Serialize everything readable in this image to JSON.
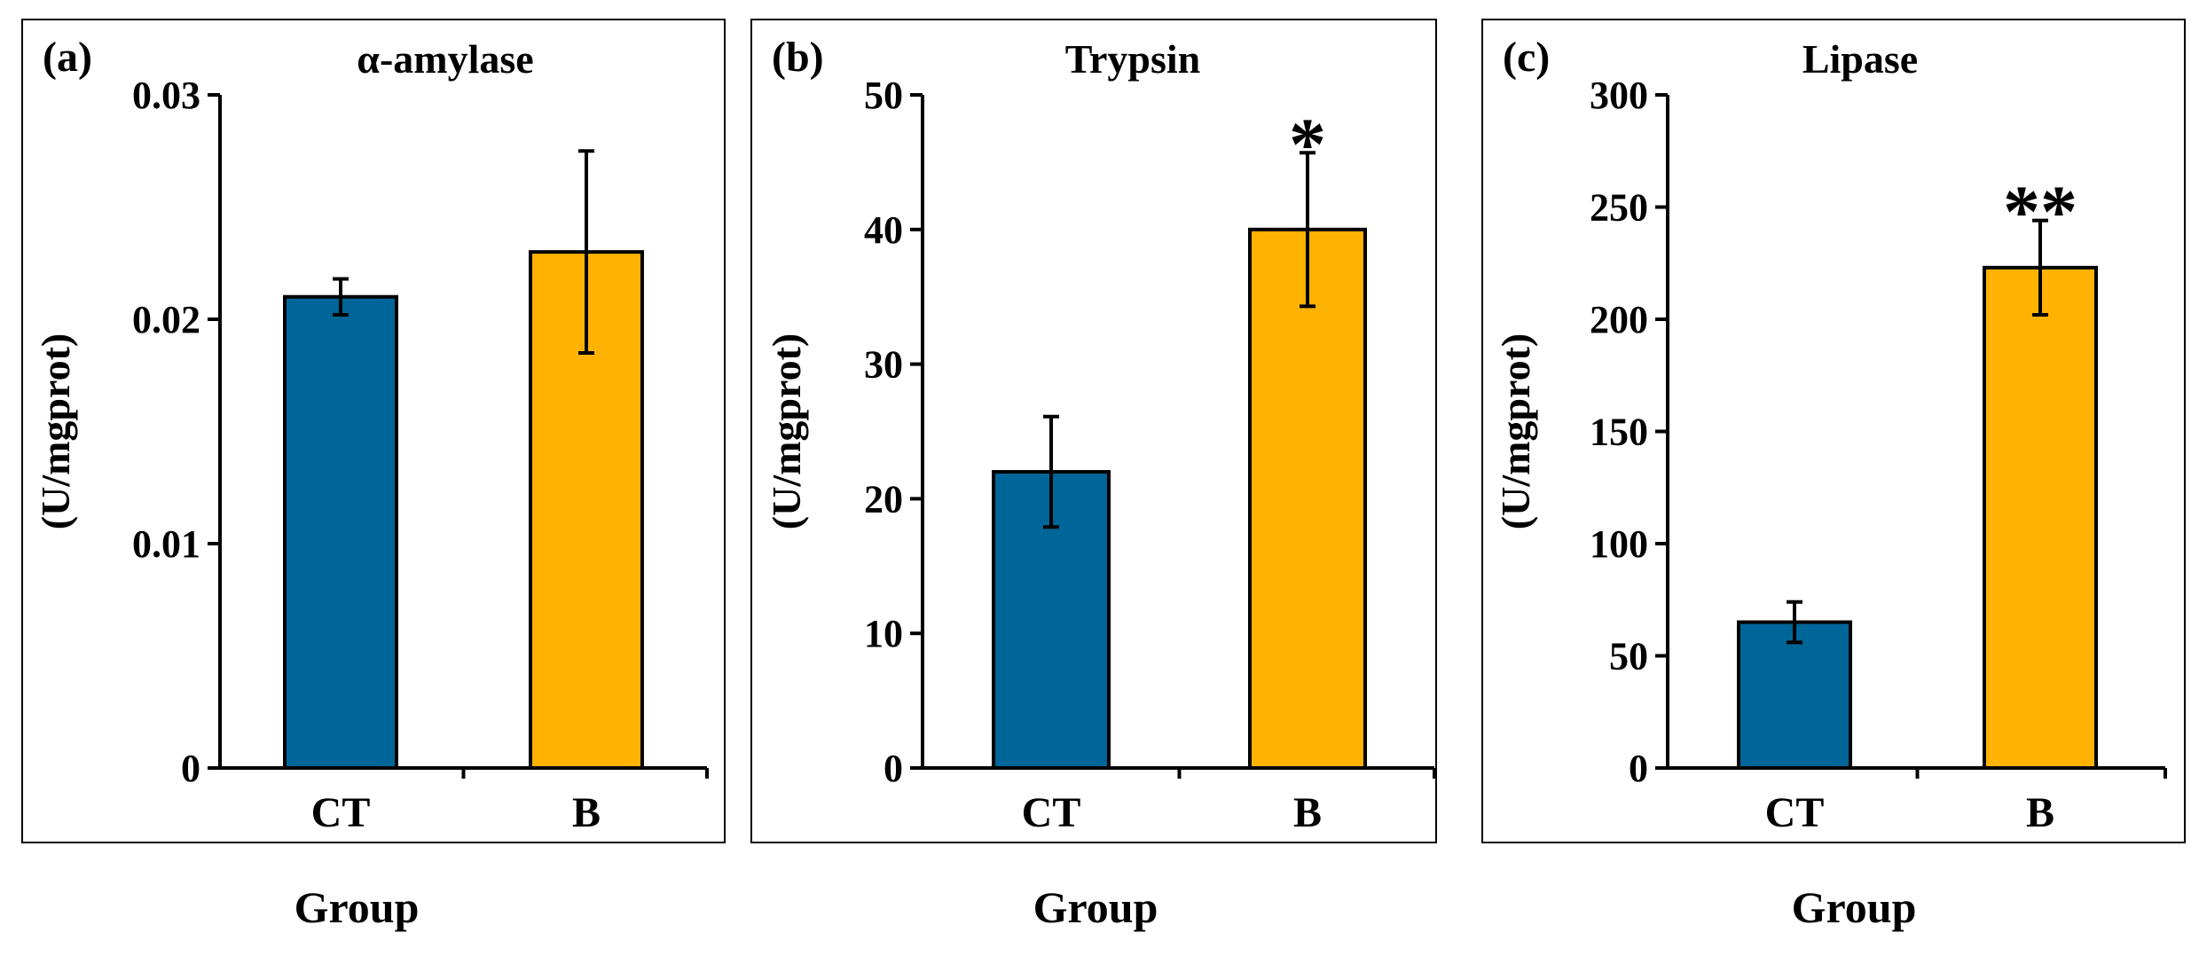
{
  "chart_data": [
    {
      "type": "bar",
      "panel_label": "(a)",
      "title": "α-amylase",
      "ylabel": "(U/mgprot)",
      "xlabel": "Group",
      "categories": [
        "CT",
        "B"
      ],
      "values": [
        0.021,
        0.023
      ],
      "errors": [
        0.0008,
        0.0045
      ],
      "colors": [
        "#006699",
        "#FFB300"
      ],
      "significance": [
        "",
        ""
      ],
      "ylim": [
        0,
        0.03
      ],
      "yticks": [
        0,
        0.01,
        0.02,
        0.03
      ],
      "ytick_labels": [
        "0",
        "0.01",
        "0.02",
        "0.03"
      ]
    },
    {
      "type": "bar",
      "panel_label": "(b)",
      "title": "Trypsin",
      "ylabel": "(U/mgprot)",
      "xlabel": "Group",
      "categories": [
        "CT",
        "B"
      ],
      "values": [
        22,
        40
      ],
      "errors": [
        4.1,
        5.7
      ],
      "colors": [
        "#006699",
        "#FFB300"
      ],
      "significance": [
        "",
        "*"
      ],
      "ylim": [
        0,
        50
      ],
      "yticks": [
        0,
        10,
        20,
        30,
        40,
        50
      ],
      "ytick_labels": [
        "0",
        "10",
        "20",
        "30",
        "40",
        "50"
      ]
    },
    {
      "type": "bar",
      "panel_label": "(c)",
      "title": "Lipase",
      "ylabel": "(U/mgprot)",
      "xlabel": "Group",
      "categories": [
        "CT",
        "B"
      ],
      "values": [
        65,
        223
      ],
      "errors": [
        9,
        21
      ],
      "colors": [
        "#006699",
        "#FFB300"
      ],
      "significance": [
        "",
        "**"
      ],
      "ylim": [
        0,
        300
      ],
      "yticks": [
        0,
        50,
        100,
        150,
        200,
        250,
        300
      ],
      "ytick_labels": [
        "0",
        "50",
        "100",
        "150",
        "200",
        "250",
        "300"
      ]
    }
  ]
}
